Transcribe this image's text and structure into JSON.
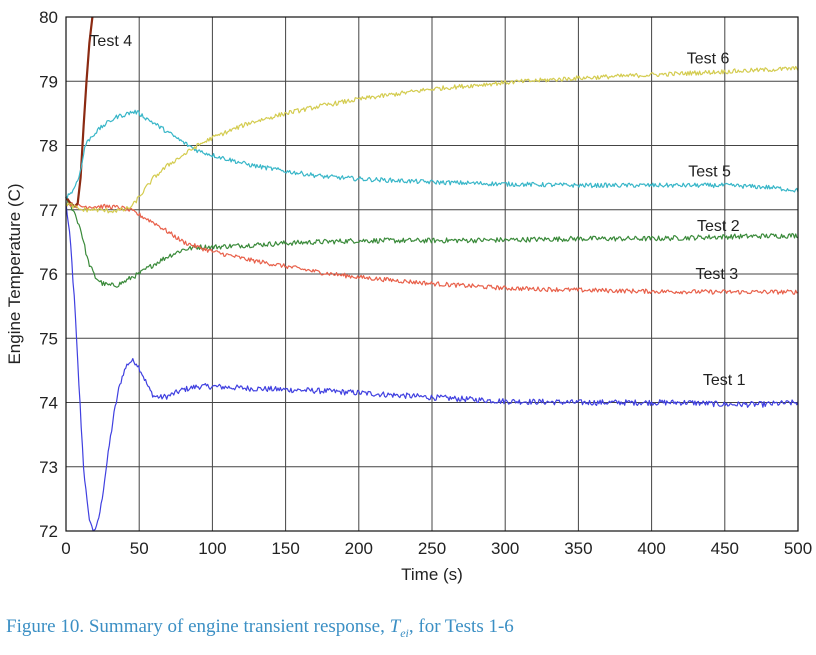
{
  "chart_data": {
    "type": "line",
    "xlabel": "Time (s)",
    "ylabel": "Engine Temperature (C)",
    "xlim": [
      0,
      500
    ],
    "ylim": [
      72,
      80
    ],
    "xticks": [
      "0",
      "50",
      "100",
      "150",
      "200",
      "250",
      "300",
      "350",
      "400",
      "450",
      "500"
    ],
    "yticks": [
      "72",
      "73",
      "74",
      "75",
      "76",
      "77",
      "78",
      "79",
      "80"
    ],
    "grid": true,
    "series": [
      {
        "name": "Test 1",
        "color": "#4040e0",
        "noise": 0.045,
        "x": [
          0,
          3,
          6,
          9,
          12,
          15,
          18,
          21,
          24,
          27,
          30,
          33,
          36,
          39,
          42,
          45,
          48,
          51,
          54,
          57,
          60,
          65,
          70,
          75,
          80,
          90,
          100,
          125,
          150,
          175,
          200,
          250,
          300,
          350,
          400,
          425,
          450,
          475,
          500
        ],
        "y": [
          77.1,
          76.5,
          75.5,
          74.2,
          73.0,
          72.3,
          72.02,
          72.05,
          72.4,
          72.9,
          73.4,
          73.85,
          74.2,
          74.45,
          74.6,
          74.65,
          74.62,
          74.5,
          74.35,
          74.2,
          74.1,
          74.08,
          74.1,
          74.15,
          74.2,
          74.25,
          74.25,
          74.22,
          74.2,
          74.18,
          74.15,
          74.08,
          74.02,
          74.0,
          74.0,
          74.0,
          73.97,
          73.97,
          74.0
        ]
      },
      {
        "name": "Test 2",
        "color": "#3a8a3a",
        "noise": 0.04,
        "x": [
          0,
          5,
          10,
          15,
          20,
          25,
          30,
          35,
          40,
          45,
          50,
          55,
          60,
          70,
          80,
          90,
          100,
          125,
          150,
          175,
          200,
          250,
          300,
          350,
          400,
          450,
          500
        ],
        "y": [
          77.15,
          77.0,
          76.7,
          76.2,
          75.95,
          75.85,
          75.82,
          75.83,
          75.88,
          75.95,
          76.0,
          76.08,
          76.15,
          76.28,
          76.38,
          76.42,
          76.42,
          76.45,
          76.48,
          76.5,
          76.52,
          76.52,
          76.53,
          76.55,
          76.55,
          76.58,
          76.6
        ]
      },
      {
        "name": "Test 3",
        "color": "#e8604a",
        "noise": 0.035,
        "x": [
          0,
          10,
          20,
          30,
          40,
          45,
          50,
          60,
          70,
          80,
          90,
          100,
          125,
          150,
          175,
          200,
          250,
          300,
          350,
          400,
          450,
          500
        ],
        "y": [
          77.1,
          77.05,
          77.05,
          77.05,
          77.02,
          76.98,
          76.92,
          76.8,
          76.65,
          76.5,
          76.42,
          76.35,
          76.22,
          76.12,
          76.02,
          75.95,
          75.85,
          75.78,
          75.75,
          75.73,
          75.72,
          75.72
        ]
      },
      {
        "name": "Test 4",
        "color": "#8b2a12",
        "noise": 0,
        "x": [
          0,
          3,
          6,
          8,
          10,
          12,
          14,
          16,
          18
        ],
        "y": [
          77.2,
          77.1,
          77.05,
          77.1,
          77.5,
          78.3,
          79.0,
          79.6,
          80.0
        ]
      },
      {
        "name": "Test 5",
        "color": "#38b6c8",
        "noise": 0.035,
        "x": [
          0,
          5,
          10,
          13,
          16,
          20,
          25,
          30,
          35,
          40,
          45,
          48,
          50,
          55,
          60,
          70,
          80,
          90,
          100,
          125,
          150,
          175,
          200,
          250,
          300,
          350,
          400,
          450,
          480,
          500
        ],
        "y": [
          77.2,
          77.3,
          77.6,
          78.0,
          78.1,
          78.2,
          78.3,
          78.38,
          78.45,
          78.48,
          78.52,
          78.52,
          78.5,
          78.42,
          78.35,
          78.2,
          78.05,
          77.92,
          77.85,
          77.7,
          77.6,
          77.52,
          77.48,
          77.43,
          77.4,
          77.38,
          77.38,
          77.38,
          77.35,
          77.3
        ]
      },
      {
        "name": "Test 6",
        "color": "#d4cc50",
        "noise": 0.035,
        "x": [
          0,
          10,
          20,
          30,
          40,
          45,
          50,
          55,
          60,
          70,
          80,
          90,
          100,
          125,
          150,
          175,
          200,
          250,
          300,
          350,
          400,
          450,
          500
        ],
        "y": [
          77.1,
          77.0,
          77.0,
          76.98,
          77.0,
          77.05,
          77.2,
          77.35,
          77.5,
          77.7,
          77.85,
          78.0,
          78.12,
          78.35,
          78.5,
          78.62,
          78.72,
          78.88,
          78.98,
          79.05,
          79.1,
          79.15,
          79.2
        ]
      }
    ],
    "annotations": [
      {
        "text": "Test 4",
        "x": 16,
        "y": 79.55
      },
      {
        "text": "Test 6",
        "x": 424,
        "y": 79.28
      },
      {
        "text": "Test 5",
        "x": 425,
        "y": 77.52
      },
      {
        "text": "Test 2",
        "x": 431,
        "y": 76.67
      },
      {
        "text": "Test 3",
        "x": 430,
        "y": 75.92
      },
      {
        "text": "Test 1",
        "x": 435,
        "y": 74.27
      }
    ]
  },
  "caption": {
    "prefix": "Figure 10. Summary of engine transient response, ",
    "symbol": "T",
    "subscript": "ei",
    "suffix": ", for Tests 1-6"
  }
}
